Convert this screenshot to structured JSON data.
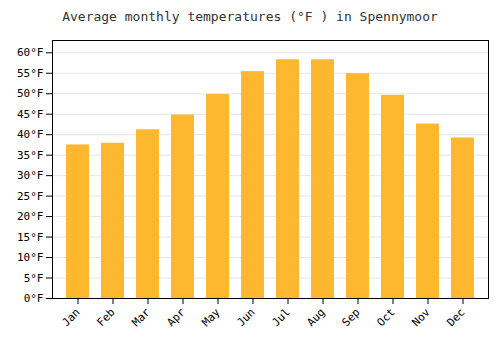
{
  "chart_data": {
    "type": "bar",
    "title": "Average monthly temperatures (°F ) in Spennymoor",
    "categories": [
      "Jan",
      "Feb",
      "Mar",
      "Apr",
      "May",
      "Jun",
      "Jul",
      "Aug",
      "Sep",
      "Oct",
      "Nov",
      "Dec"
    ],
    "values": [
      37.5,
      37.9,
      41.2,
      44.8,
      49.8,
      55.4,
      58.3,
      58.3,
      54.9,
      49.6,
      42.6,
      39.2
    ],
    "color": "#FDB830",
    "ylim": [
      0,
      63
    ],
    "yticks": [
      {
        "value": 0,
        "label": "0°F"
      },
      {
        "value": 5,
        "label": "5°F"
      },
      {
        "value": 10,
        "label": "10°F"
      },
      {
        "value": 15,
        "label": "15°F"
      },
      {
        "value": 20,
        "label": "20°F"
      },
      {
        "value": 25,
        "label": "25°F"
      },
      {
        "value": 30,
        "label": "30°F"
      },
      {
        "value": 35,
        "label": "35°F"
      },
      {
        "value": 40,
        "label": "40°F"
      },
      {
        "value": 45,
        "label": "45°F"
      },
      {
        "value": 50,
        "label": "50°F"
      },
      {
        "value": 55,
        "label": "55°F"
      },
      {
        "value": 60,
        "label": "60°F"
      }
    ],
    "grid": true
  }
}
